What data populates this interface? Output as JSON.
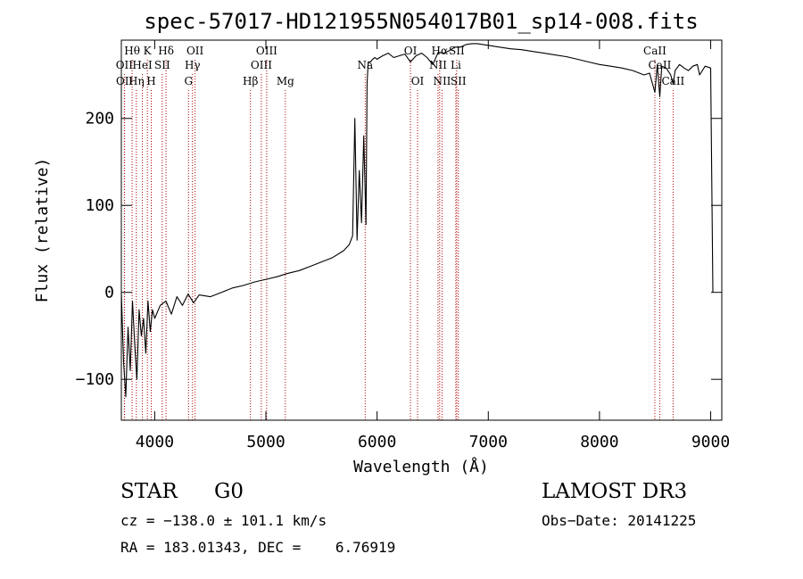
{
  "chart_data": {
    "type": "line",
    "title": "spec-57017-HD121955N054017B01_sp14-008.fits",
    "xlabel": "Wavelength (Å)",
    "ylabel": "Flux (relative)",
    "xlim": [
      3700,
      9100
    ],
    "ylim": [
      -147,
      290
    ],
    "x_ticks": [
      4000,
      5000,
      6000,
      7000,
      8000,
      9000
    ],
    "y_ticks": [
      -100,
      0,
      100,
      200
    ],
    "grid": false,
    "line_color": "#000000",
    "marker_color": "#aa0000",
    "series": [
      {
        "name": "spectrum",
        "x": [
          3700,
          3720,
          3740,
          3760,
          3780,
          3800,
          3820,
          3840,
          3860,
          3880,
          3900,
          3920,
          3940,
          3960,
          3980,
          4000,
          4050,
          4100,
          4150,
          4200,
          4250,
          4300,
          4350,
          4400,
          4500,
          4600,
          4700,
          4800,
          4900,
          5000,
          5100,
          5200,
          5300,
          5400,
          5500,
          5600,
          5700,
          5750,
          5780,
          5800,
          5820,
          5840,
          5860,
          5880,
          5900,
          5910,
          5920,
          5940,
          5960,
          5980,
          6000,
          6050,
          6100,
          6150,
          6200,
          6250,
          6300,
          6350,
          6400,
          6450,
          6500,
          6550,
          6600,
          6650,
          6700,
          6750,
          6800,
          6850,
          6900,
          7000,
          7100,
          7200,
          7300,
          7400,
          7500,
          7600,
          7700,
          7800,
          7900,
          8000,
          8100,
          8200,
          8300,
          8400,
          8450,
          8498,
          8520,
          8542,
          8560,
          8600,
          8640,
          8662,
          8680,
          8720,
          8760,
          8800,
          8840,
          8880,
          8900,
          8950,
          9000,
          9020
        ],
        "y": [
          0,
          -80,
          -120,
          -40,
          -90,
          -10,
          -60,
          -100,
          -20,
          -50,
          -30,
          -70,
          -10,
          -45,
          -20,
          -30,
          -15,
          -10,
          -25,
          -5,
          -15,
          -2,
          -12,
          -3,
          -5,
          0,
          5,
          8,
          12,
          15,
          18,
          22,
          25,
          30,
          35,
          40,
          48,
          55,
          65,
          200,
          60,
          140,
          80,
          180,
          78,
          240,
          265,
          265,
          268,
          270,
          268,
          272,
          275,
          270,
          272,
          274,
          265,
          272,
          275,
          270,
          262,
          276,
          275,
          278,
          282,
          282,
          285,
          286,
          286,
          284,
          282,
          280,
          279,
          277,
          275,
          273,
          271,
          268,
          265,
          262,
          260,
          258,
          255,
          250,
          252,
          230,
          262,
          225,
          260,
          258,
          250,
          240,
          255,
          262,
          258,
          255,
          260,
          262,
          250,
          260,
          258,
          0
        ],
        "ref_stroke": "#000000"
      }
    ],
    "line_markers": {
      "top": [
        {
          "label": "Hθ",
          "x": 3797
        },
        {
          "label": "K",
          "x": 3934
        },
        {
          "label": "Hδ",
          "x": 4102
        },
        {
          "label": "OII",
          "x": 4363
        },
        {
          "label": "OIII",
          "x": 5007
        },
        {
          "label": "OI",
          "x": 6300
        },
        {
          "label": "Hα",
          "x": 6563
        },
        {
          "label": "SII",
          "x": 6716
        },
        {
          "label": "CaII",
          "x": 8498
        }
      ],
      "middle": [
        {
          "label": "OII",
          "x": 3727
        },
        {
          "label": "HeI",
          "x": 3889
        },
        {
          "label": "SII",
          "x": 4068
        },
        {
          "label": "Hγ",
          "x": 4340
        },
        {
          "label": "OIII",
          "x": 4959
        },
        {
          "label": "Na",
          "x": 5893
        },
        {
          "label": "NII",
          "x": 6548
        },
        {
          "label": "Li",
          "x": 6708
        },
        {
          "label": "CaII",
          "x": 8542
        }
      ],
      "bottom": [
        {
          "label": "OII",
          "x": 3729
        },
        {
          "label": "Hη",
          "x": 3835
        },
        {
          "label": "H",
          "x": 3969
        },
        {
          "label": "G",
          "x": 4304
        },
        {
          "label": "Hβ",
          "x": 4861
        },
        {
          "label": "Mg",
          "x": 5175
        },
        {
          "label": "OI",
          "x": 6364
        },
        {
          "label": "NII",
          "x": 6584
        },
        {
          "label": "SII",
          "x": 6731
        },
        {
          "label": "CaII",
          "x": 8662
        }
      ]
    }
  },
  "info": {
    "object_class": "STAR",
    "subclass": "G0",
    "survey": "LAMOST DR3",
    "redshift": "cz = −138.0 ± 101.1 km/s",
    "obs_date": "Obs−Date: 20141225",
    "coords": "RA = 183.01343, DEC =    6.76919"
  }
}
